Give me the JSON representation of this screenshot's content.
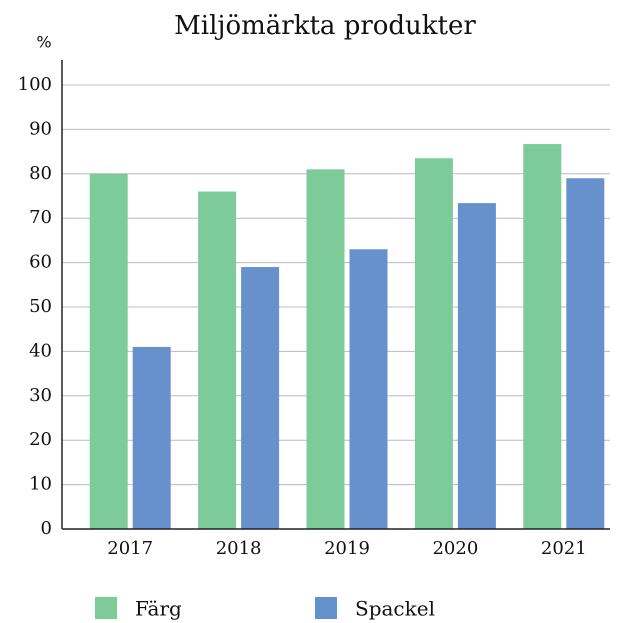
{
  "chart_data": {
    "type": "bar",
    "title": "Miljömärkta produkter",
    "y_label": "%",
    "categories": [
      "2017",
      "2018",
      "2019",
      "2020",
      "2021"
    ],
    "series": [
      {
        "name": "Färg",
        "color": "#7ecb9a",
        "values": [
          80,
          76,
          81,
          83.5,
          86.7
        ]
      },
      {
        "name": "Spackel",
        "color": "#6691cc",
        "values": [
          41,
          59,
          63,
          73.4,
          79
        ]
      }
    ],
    "ylim": [
      0,
      100
    ],
    "yticks": [
      0,
      10,
      20,
      30,
      40,
      50,
      60,
      70,
      80,
      90,
      100
    ],
    "grid": true
  }
}
